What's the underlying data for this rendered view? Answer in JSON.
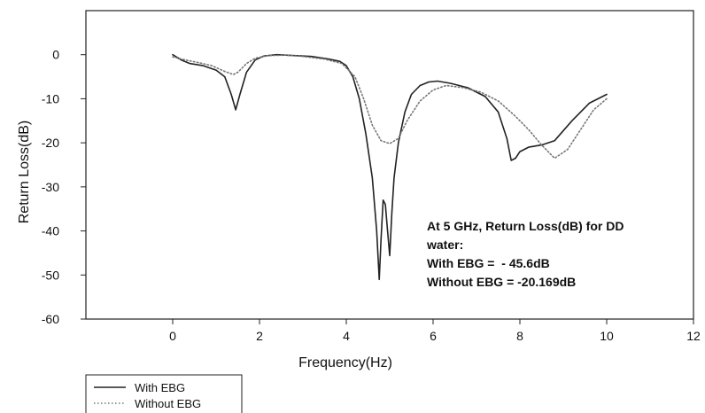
{
  "chart_data": {
    "type": "line",
    "xlabel": "Frequency(Hz)",
    "ylabel": "Return Loss(dB)",
    "xlim": [
      -2,
      12
    ],
    "ylim": [
      -60,
      10
    ],
    "xticks": [
      "0",
      "2",
      "4",
      "6",
      "8",
      "10",
      "12"
    ],
    "xtick_values": [
      0,
      2,
      4,
      6,
      8,
      10,
      12
    ],
    "yticks": [
      "0",
      "-10",
      "-20",
      "-30",
      "-40",
      "-50",
      "-60"
    ],
    "ytick_values": [
      0,
      -10,
      -20,
      -30,
      -40,
      -50,
      -60
    ],
    "grid": false,
    "legend_position": "bottom-left, below plot",
    "series": [
      {
        "name": "With EBG",
        "style": "solid",
        "color": "#222222",
        "x": [
          0.0,
          0.2,
          0.4,
          0.7,
          1.0,
          1.2,
          1.35,
          1.45,
          1.55,
          1.7,
          1.9,
          2.1,
          2.4,
          2.8,
          3.2,
          3.6,
          3.85,
          4.0,
          4.15,
          4.3,
          4.45,
          4.6,
          4.7,
          4.76,
          4.8,
          4.85,
          4.9,
          4.95,
          5.0,
          5.05,
          5.1,
          5.2,
          5.35,
          5.5,
          5.7,
          5.9,
          6.1,
          6.4,
          6.8,
          7.2,
          7.5,
          7.7,
          7.8,
          7.9,
          8.0,
          8.2,
          8.5,
          8.8,
          9.2,
          9.6,
          10.0
        ],
        "y": [
          0.0,
          -1.2,
          -2.0,
          -2.5,
          -3.5,
          -5.0,
          -9.0,
          -12.5,
          -9.0,
          -4.0,
          -1.2,
          -0.3,
          0.0,
          -0.2,
          -0.4,
          -1.0,
          -1.5,
          -2.5,
          -5.0,
          -10.0,
          -18.0,
          -28.0,
          -40.0,
          -51.0,
          -42.0,
          -33.0,
          -34.0,
          -40.0,
          -45.6,
          -36.0,
          -28.0,
          -20.0,
          -13.0,
          -9.0,
          -7.0,
          -6.2,
          -6.0,
          -6.5,
          -7.5,
          -9.5,
          -13.0,
          -19.0,
          -24.0,
          -23.5,
          -22.0,
          -21.0,
          -20.5,
          -19.5,
          -15.0,
          -11.0,
          -9.0
        ]
      },
      {
        "name": "Without EBG",
        "style": "dotted",
        "color": "#777777",
        "x": [
          0.0,
          0.3,
          0.6,
          0.9,
          1.2,
          1.4,
          1.5,
          1.7,
          1.9,
          2.2,
          2.6,
          3.0,
          3.5,
          3.9,
          4.2,
          4.4,
          4.6,
          4.8,
          5.0,
          5.2,
          5.4,
          5.7,
          6.0,
          6.3,
          6.7,
          7.1,
          7.5,
          7.9,
          8.2,
          8.5,
          8.8,
          9.1,
          9.4,
          9.7,
          10.0
        ],
        "y": [
          -0.5,
          -1.2,
          -1.8,
          -2.5,
          -3.8,
          -4.5,
          -4.0,
          -2.0,
          -0.8,
          -0.2,
          -0.1,
          -0.4,
          -1.0,
          -2.0,
          -5.0,
          -10.0,
          -16.0,
          -19.5,
          -20.169,
          -19.0,
          -15.0,
          -10.5,
          -8.0,
          -7.0,
          -7.5,
          -8.5,
          -10.5,
          -14.0,
          -17.0,
          -20.5,
          -23.5,
          -21.5,
          -17.0,
          -12.5,
          -10.0
        ]
      }
    ],
    "annotations": [
      "At 5 GHz, Return Loss(dB) for DD",
      "water:",
      "With EBG =  - 45.6dB",
      "Without EBG = -20.169dB"
    ]
  }
}
